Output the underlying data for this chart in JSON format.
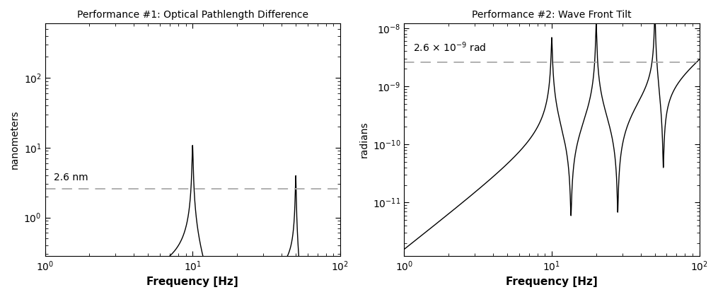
{
  "title1": "Performance #1: Optical Pathlength Difference",
  "title2": "Performance #2: Wave Front Tilt",
  "xlabel": "Frequency [Hz]",
  "ylabel1": "nanometers",
  "ylabel2": "radians",
  "xlim": [
    1,
    100
  ],
  "ylim1": [
    0.28,
    600
  ],
  "ylim2": [
    1.2e-12,
    1.2e-08
  ],
  "dashed_val1": 2.6,
  "dashed_val2": 2.6e-09,
  "dashed_label1": "2.6 nm",
  "dashed_label2": "2.6 x 10$^{-9}$ rad",
  "line_color": "#000000",
  "dashed_color": "#aaaaaa",
  "bg_color": "#ffffff"
}
